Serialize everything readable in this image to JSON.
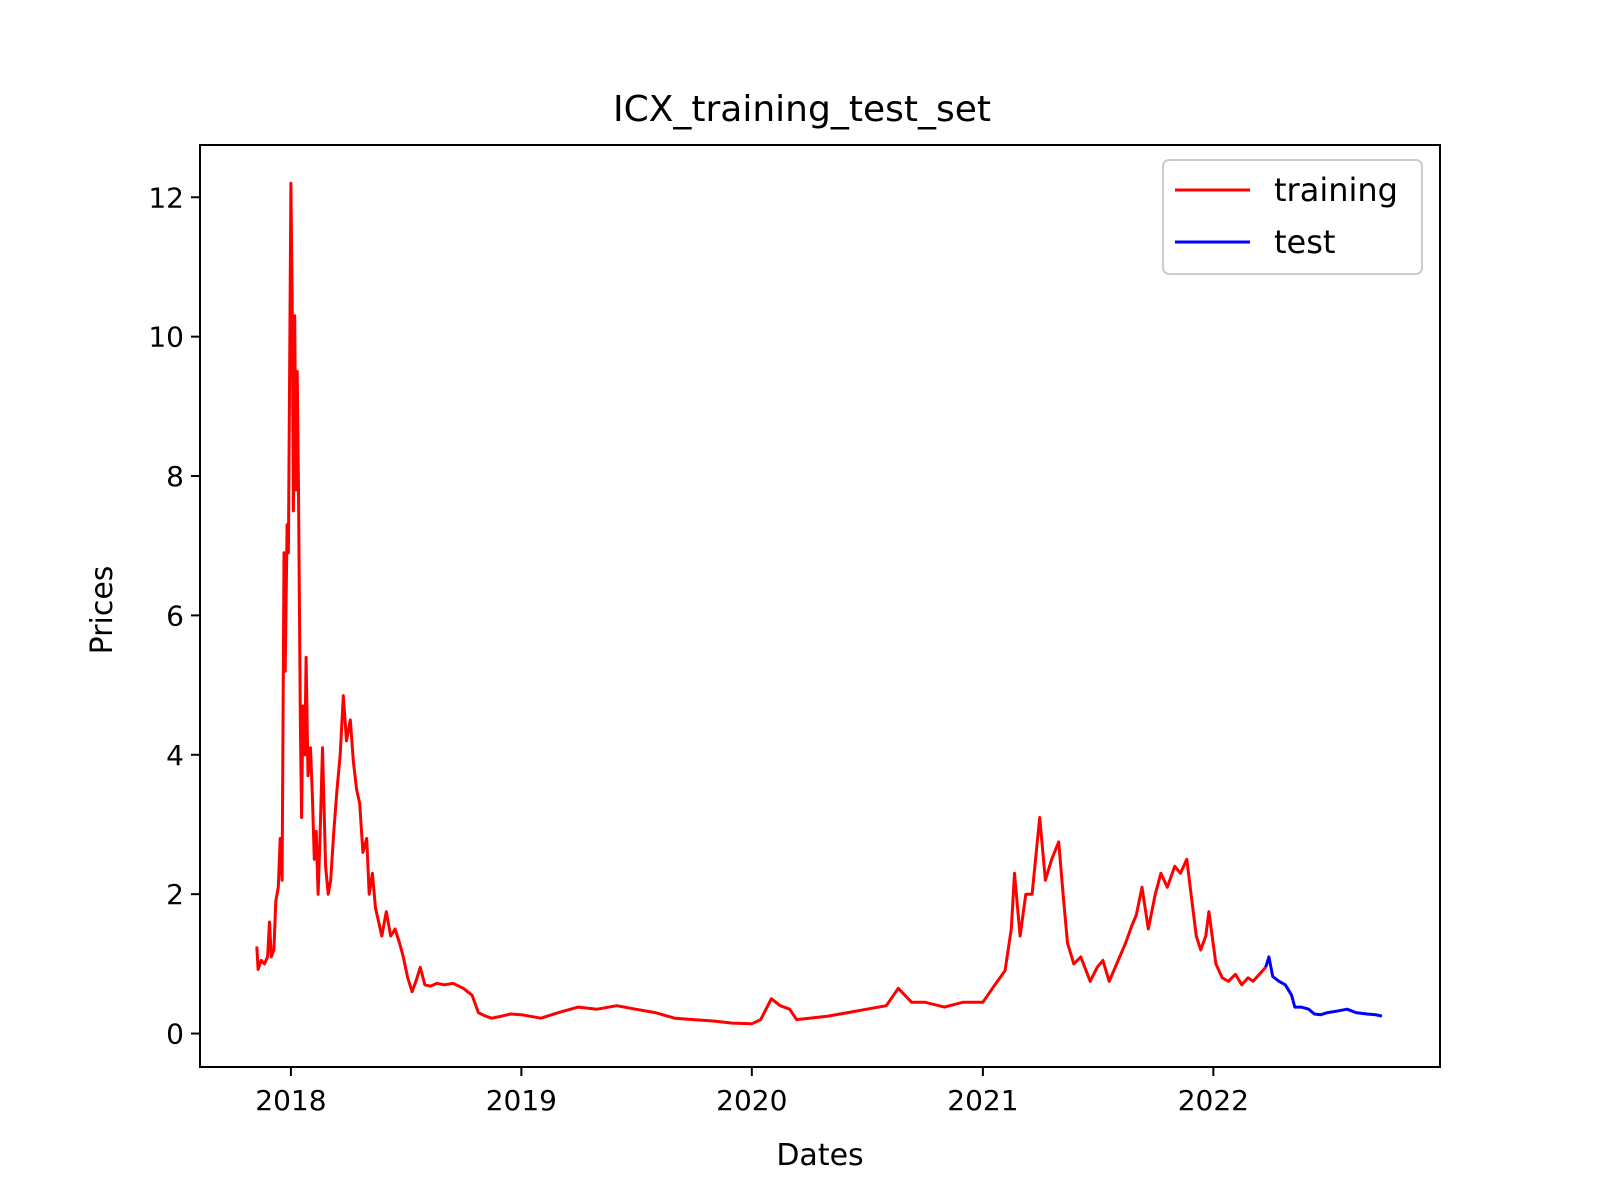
{
  "chart_data": {
    "type": "line",
    "title": "ICX_training_test_set",
    "xlabel": "Dates",
    "ylabel": "Prices",
    "x_ticks": [
      "2018",
      "2019",
      "2020",
      "2021",
      "2022"
    ],
    "y_ticks": [
      "0",
      "2",
      "4",
      "6",
      "8",
      "10",
      "12"
    ],
    "xlim": [
      "2017-08-10",
      "2022-12-26"
    ],
    "ylim": [
      -0.48,
      12.75
    ],
    "grid": false,
    "legend_position": "top-right",
    "series": [
      {
        "name": "training",
        "color": "#ff0000",
        "points": [
          [
            "2017-11-08",
            1.25
          ],
          [
            "2017-11-10",
            0.92
          ],
          [
            "2017-11-15",
            1.05
          ],
          [
            "2017-11-20",
            1.0
          ],
          [
            "2017-11-25",
            1.1
          ],
          [
            "2017-11-28",
            1.6
          ],
          [
            "2017-12-01",
            1.1
          ],
          [
            "2017-12-05",
            1.2
          ],
          [
            "2017-12-08",
            1.9
          ],
          [
            "2017-12-12",
            2.1
          ],
          [
            "2017-12-15",
            2.8
          ],
          [
            "2017-12-18",
            2.2
          ],
          [
            "2017-12-21",
            6.9
          ],
          [
            "2017-12-23",
            5.2
          ],
          [
            "2017-12-26",
            7.3
          ],
          [
            "2017-12-28",
            6.9
          ],
          [
            "2018-01-01",
            12.2
          ],
          [
            "2018-01-03",
            10.5
          ],
          [
            "2018-01-05",
            7.5
          ],
          [
            "2018-01-07",
            10.3
          ],
          [
            "2018-01-09",
            7.8
          ],
          [
            "2018-01-11",
            9.5
          ],
          [
            "2018-01-13",
            7.8
          ],
          [
            "2018-01-16",
            4.4
          ],
          [
            "2018-01-18",
            3.1
          ],
          [
            "2018-01-20",
            4.7
          ],
          [
            "2018-01-23",
            4.0
          ],
          [
            "2018-01-25",
            5.4
          ],
          [
            "2018-01-28",
            3.7
          ],
          [
            "2018-02-01",
            4.1
          ],
          [
            "2018-02-04",
            3.4
          ],
          [
            "2018-02-07",
            2.5
          ],
          [
            "2018-02-10",
            2.9
          ],
          [
            "2018-02-13",
            2.0
          ],
          [
            "2018-02-16",
            2.8
          ],
          [
            "2018-02-20",
            4.1
          ],
          [
            "2018-02-25",
            2.4
          ],
          [
            "2018-03-01",
            2.0
          ],
          [
            "2018-03-05",
            2.2
          ],
          [
            "2018-03-10",
            2.9
          ],
          [
            "2018-03-15",
            3.5
          ],
          [
            "2018-03-20",
            4.0
          ],
          [
            "2018-03-25",
            4.85
          ],
          [
            "2018-03-30",
            4.2
          ],
          [
            "2018-04-05",
            4.5
          ],
          [
            "2018-04-10",
            3.9
          ],
          [
            "2018-04-15",
            3.5
          ],
          [
            "2018-04-20",
            3.3
          ],
          [
            "2018-04-25",
            2.6
          ],
          [
            "2018-05-01",
            2.8
          ],
          [
            "2018-05-05",
            2.0
          ],
          [
            "2018-05-10",
            2.3
          ],
          [
            "2018-05-15",
            1.8
          ],
          [
            "2018-05-20",
            1.6
          ],
          [
            "2018-05-25",
            1.4
          ],
          [
            "2018-06-01",
            1.75
          ],
          [
            "2018-06-08",
            1.4
          ],
          [
            "2018-06-15",
            1.5
          ],
          [
            "2018-06-22",
            1.3
          ],
          [
            "2018-06-28",
            1.1
          ],
          [
            "2018-07-05",
            0.8
          ],
          [
            "2018-07-12",
            0.6
          ],
          [
            "2018-07-18",
            0.75
          ],
          [
            "2018-07-25",
            0.95
          ],
          [
            "2018-08-01",
            0.7
          ],
          [
            "2018-08-10",
            0.68
          ],
          [
            "2018-08-20",
            0.72
          ],
          [
            "2018-09-01",
            0.7
          ],
          [
            "2018-09-15",
            0.72
          ],
          [
            "2018-10-01",
            0.65
          ],
          [
            "2018-10-15",
            0.55
          ],
          [
            "2018-10-25",
            0.3
          ],
          [
            "2018-11-05",
            0.25
          ],
          [
            "2018-11-15",
            0.22
          ],
          [
            "2018-12-01",
            0.25
          ],
          [
            "2018-12-15",
            0.28
          ],
          [
            "2019-01-01",
            0.27
          ],
          [
            "2019-02-01",
            0.22
          ],
          [
            "2019-03-01",
            0.3
          ],
          [
            "2019-04-01",
            0.38
          ],
          [
            "2019-05-01",
            0.35
          ],
          [
            "2019-06-01",
            0.4
          ],
          [
            "2019-07-01",
            0.35
          ],
          [
            "2019-08-01",
            0.3
          ],
          [
            "2019-09-01",
            0.22
          ],
          [
            "2019-10-01",
            0.2
          ],
          [
            "2019-11-01",
            0.18
          ],
          [
            "2019-12-01",
            0.15
          ],
          [
            "2020-01-01",
            0.14
          ],
          [
            "2020-01-15",
            0.2
          ],
          [
            "2020-02-01",
            0.5
          ],
          [
            "2020-02-15",
            0.4
          ],
          [
            "2020-03-01",
            0.35
          ],
          [
            "2020-03-12",
            0.2
          ],
          [
            "2020-04-01",
            0.22
          ],
          [
            "2020-05-01",
            0.25
          ],
          [
            "2020-06-01",
            0.3
          ],
          [
            "2020-07-01",
            0.35
          ],
          [
            "2020-08-01",
            0.4
          ],
          [
            "2020-08-20",
            0.65
          ],
          [
            "2020-09-10",
            0.45
          ],
          [
            "2020-10-01",
            0.45
          ],
          [
            "2020-11-01",
            0.38
          ],
          [
            "2020-12-01",
            0.45
          ],
          [
            "2021-01-01",
            0.45
          ],
          [
            "2021-01-20",
            0.7
          ],
          [
            "2021-02-05",
            0.9
          ],
          [
            "2021-02-15",
            1.5
          ],
          [
            "2021-02-20",
            2.3
          ],
          [
            "2021-03-01",
            1.4
          ],
          [
            "2021-03-10",
            2.0
          ],
          [
            "2021-03-20",
            2.0
          ],
          [
            "2021-04-01",
            3.1
          ],
          [
            "2021-04-10",
            2.2
          ],
          [
            "2021-04-20",
            2.5
          ],
          [
            "2021-05-01",
            2.75
          ],
          [
            "2021-05-08",
            2.0
          ],
          [
            "2021-05-15",
            1.3
          ],
          [
            "2021-05-25",
            1.0
          ],
          [
            "2021-06-05",
            1.1
          ],
          [
            "2021-06-20",
            0.75
          ],
          [
            "2021-07-01",
            0.95
          ],
          [
            "2021-07-10",
            1.05
          ],
          [
            "2021-07-20",
            0.75
          ],
          [
            "2021-08-01",
            1.0
          ],
          [
            "2021-08-15",
            1.3
          ],
          [
            "2021-08-25",
            1.55
          ],
          [
            "2021-09-01",
            1.7
          ],
          [
            "2021-09-10",
            2.1
          ],
          [
            "2021-09-20",
            1.5
          ],
          [
            "2021-10-01",
            2.0
          ],
          [
            "2021-10-10",
            2.3
          ],
          [
            "2021-10-20",
            2.1
          ],
          [
            "2021-11-01",
            2.4
          ],
          [
            "2021-11-10",
            2.3
          ],
          [
            "2021-11-20",
            2.5
          ],
          [
            "2021-11-28",
            1.9
          ],
          [
            "2021-12-05",
            1.4
          ],
          [
            "2021-12-12",
            1.2
          ],
          [
            "2021-12-20",
            1.4
          ],
          [
            "2021-12-25",
            1.75
          ],
          [
            "2022-01-05",
            1.0
          ],
          [
            "2022-01-15",
            0.8
          ],
          [
            "2022-01-25",
            0.75
          ],
          [
            "2022-02-05",
            0.85
          ],
          [
            "2022-02-15",
            0.7
          ],
          [
            "2022-02-25",
            0.8
          ],
          [
            "2022-03-05",
            0.75
          ],
          [
            "2022-03-15",
            0.85
          ],
          [
            "2022-03-25",
            0.95
          ]
        ]
      },
      {
        "name": "test",
        "color": "#0000ff",
        "points": [
          [
            "2022-03-25",
            0.95
          ],
          [
            "2022-03-30",
            1.1
          ],
          [
            "2022-04-05",
            0.82
          ],
          [
            "2022-04-15",
            0.75
          ],
          [
            "2022-04-25",
            0.7
          ],
          [
            "2022-05-05",
            0.55
          ],
          [
            "2022-05-10",
            0.38
          ],
          [
            "2022-05-20",
            0.38
          ],
          [
            "2022-06-01",
            0.35
          ],
          [
            "2022-06-10",
            0.28
          ],
          [
            "2022-06-20",
            0.27
          ],
          [
            "2022-07-01",
            0.3
          ],
          [
            "2022-07-15",
            0.32
          ],
          [
            "2022-08-01",
            0.35
          ],
          [
            "2022-08-15",
            0.3
          ],
          [
            "2022-09-01",
            0.28
          ],
          [
            "2022-09-15",
            0.27
          ],
          [
            "2022-09-25",
            0.25
          ]
        ]
      }
    ]
  }
}
